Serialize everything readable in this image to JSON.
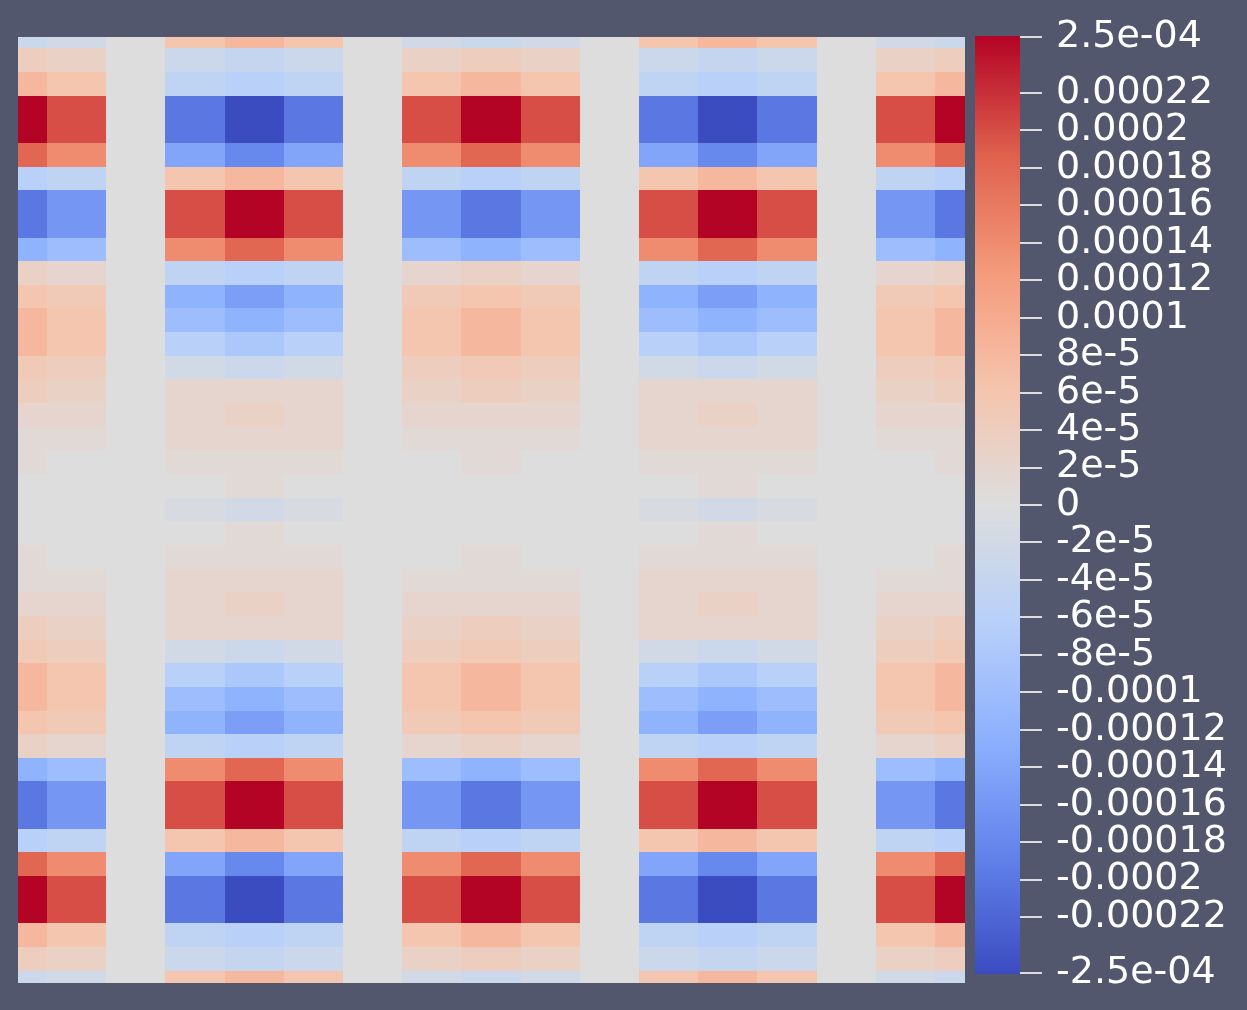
{
  "chart_data": {
    "type": "heatmap",
    "tick_labels": false,
    "x": [
      0,
      1,
      2,
      3,
      4,
      5,
      6,
      7,
      8,
      9,
      10,
      11,
      12,
      13,
      14,
      15,
      16
    ],
    "y": [
      40,
      39,
      38,
      37,
      36,
      35,
      34,
      33,
      32,
      31,
      30,
      29,
      28,
      27,
      26,
      25,
      24,
      23,
      22,
      21,
      20,
      19,
      18,
      17,
      16,
      15,
      14,
      13,
      12,
      11,
      10,
      9,
      8,
      7,
      6,
      5,
      4,
      3,
      2,
      1,
      0
    ],
    "xlim": [
      0,
      16
    ],
    "ylim": [
      0,
      40
    ],
    "cells": [
      [
        -3e-05,
        -2e-05,
        0,
        6e-05,
        8e-05,
        6e-05,
        0,
        -2e-05,
        -3e-05,
        -2e-05,
        0,
        6e-05,
        8e-05,
        6e-05,
        0,
        -2e-05,
        -3e-05
      ],
      [
        4e-05,
        3e-05,
        0,
        -3e-05,
        -4e-05,
        -3e-05,
        0,
        3e-05,
        4e-05,
        3e-05,
        0,
        -3e-05,
        -4e-05,
        -3e-05,
        0,
        3e-05,
        4e-05
      ],
      [
        8e-05,
        6e-05,
        0,
        -5e-05,
        -6e-05,
        -5e-05,
        0,
        6e-05,
        8e-05,
        6e-05,
        0,
        -5e-05,
        -6e-05,
        -5e-05,
        0,
        6e-05,
        8e-05
      ],
      [
        0.00025,
        0.0002,
        0,
        -0.0002,
        -0.00025,
        -0.0002,
        0,
        0.0002,
        0.00025,
        0.0002,
        0,
        -0.0002,
        -0.00025,
        -0.0002,
        0,
        0.0002,
        0.00025
      ],
      [
        0.00025,
        0.0002,
        0,
        -0.0002,
        -0.00025,
        -0.0002,
        0,
        0.0002,
        0.00025,
        0.0002,
        0,
        -0.0002,
        -0.00025,
        -0.0002,
        0,
        0.0002,
        0.00025
      ],
      [
        0.00018,
        0.00014,
        0,
        -0.00014,
        -0.00018,
        -0.00014,
        0,
        0.00014,
        0.00018,
        0.00014,
        0,
        -0.00014,
        -0.00018,
        -0.00014,
        0,
        0.00014,
        0.00018
      ],
      [
        -6e-05,
        -5e-05,
        0,
        6e-05,
        8e-05,
        6e-05,
        0,
        -5e-05,
        -6e-05,
        -5e-05,
        0,
        6e-05,
        8e-05,
        6e-05,
        0,
        -5e-05,
        -6e-05
      ],
      [
        -0.0002,
        -0.00016,
        0,
        0.0002,
        0.00025,
        0.0002,
        0,
        -0.00016,
        -0.0002,
        -0.00016,
        0,
        0.0002,
        0.00025,
        0.0002,
        0,
        -0.00016,
        -0.0002
      ],
      [
        -0.0002,
        -0.00016,
        0,
        0.0002,
        0.00025,
        0.0002,
        0,
        -0.00016,
        -0.0002,
        -0.00016,
        0,
        0.0002,
        0.00025,
        0.0002,
        0,
        -0.00016,
        -0.0002
      ],
      [
        -0.00012,
        -0.0001,
        0,
        0.00014,
        0.00018,
        0.00014,
        0,
        -0.0001,
        -0.00012,
        -0.0001,
        0,
        0.00014,
        0.00018,
        0.00014,
        0,
        -0.0001,
        -0.00012
      ],
      [
        3e-05,
        2e-05,
        0,
        -5e-05,
        -6e-05,
        -5e-05,
        0,
        2e-05,
        3e-05,
        2e-05,
        0,
        -5e-05,
        -6e-05,
        -5e-05,
        0,
        2e-05,
        3e-05
      ],
      [
        6e-05,
        5e-05,
        0,
        -0.00012,
        -0.00015,
        -0.00012,
        0,
        5e-05,
        6e-05,
        5e-05,
        0,
        -0.00012,
        -0.00015,
        -0.00012,
        0,
        5e-05,
        6e-05
      ],
      [
        8e-05,
        6e-05,
        0,
        -0.0001,
        -0.00012,
        -0.0001,
        0,
        6e-05,
        8e-05,
        6e-05,
        0,
        -0.0001,
        -0.00012,
        -0.0001,
        0,
        6e-05,
        8e-05
      ],
      [
        8e-05,
        6e-05,
        0,
        -6e-05,
        -8e-05,
        -6e-05,
        0,
        6e-05,
        8e-05,
        6e-05,
        0,
        -6e-05,
        -8e-05,
        -6e-05,
        0,
        6e-05,
        8e-05
      ],
      [
        5e-05,
        4e-05,
        0,
        -2e-05,
        -3e-05,
        -2e-05,
        0,
        4e-05,
        5e-05,
        4e-05,
        0,
        -2e-05,
        -3e-05,
        -2e-05,
        0,
        4e-05,
        5e-05
      ],
      [
        4e-05,
        3e-05,
        0,
        2e-05,
        2e-05,
        2e-05,
        0,
        3e-05,
        4e-05,
        3e-05,
        0,
        2e-05,
        2e-05,
        2e-05,
        0,
        3e-05,
        4e-05
      ],
      [
        2e-05,
        2e-05,
        0,
        2e-05,
        3e-05,
        2e-05,
        0,
        2e-05,
        2e-05,
        2e-05,
        0,
        2e-05,
        3e-05,
        2e-05,
        0,
        2e-05,
        2e-05
      ],
      [
        1e-05,
        1e-05,
        0,
        2e-05,
        2e-05,
        2e-05,
        0,
        1e-05,
        1e-05,
        1e-05,
        0,
        2e-05,
        2e-05,
        2e-05,
        0,
        1e-05,
        1e-05
      ],
      [
        1e-05,
        0,
        0,
        1e-05,
        1e-05,
        1e-05,
        0,
        0,
        1e-05,
        0,
        0,
        1e-05,
        1e-05,
        1e-05,
        0,
        0,
        1e-05
      ],
      [
        0,
        0,
        0,
        0,
        1e-05,
        0,
        0,
        0,
        0,
        0,
        0,
        0,
        1e-05,
        0,
        0,
        0,
        0
      ],
      [
        0,
        0,
        0,
        -1e-05,
        -2e-05,
        -1e-05,
        0,
        0,
        0,
        0,
        0,
        -1e-05,
        -2e-05,
        -1e-05,
        0,
        0,
        0
      ],
      [
        0,
        0,
        0,
        0,
        1e-05,
        0,
        0,
        0,
        0,
        0,
        0,
        0,
        1e-05,
        0,
        0,
        0,
        0
      ],
      [
        1e-05,
        0,
        0,
        1e-05,
        1e-05,
        1e-05,
        0,
        0,
        1e-05,
        0,
        0,
        1e-05,
        1e-05,
        1e-05,
        0,
        0,
        1e-05
      ],
      [
        1e-05,
        1e-05,
        0,
        2e-05,
        2e-05,
        2e-05,
        0,
        1e-05,
        1e-05,
        1e-05,
        0,
        2e-05,
        2e-05,
        2e-05,
        0,
        1e-05,
        1e-05
      ],
      [
        2e-05,
        2e-05,
        0,
        2e-05,
        3e-05,
        2e-05,
        0,
        2e-05,
        2e-05,
        2e-05,
        0,
        2e-05,
        3e-05,
        2e-05,
        0,
        2e-05,
        2e-05
      ],
      [
        4e-05,
        3e-05,
        0,
        2e-05,
        2e-05,
        2e-05,
        0,
        3e-05,
        4e-05,
        3e-05,
        0,
        2e-05,
        2e-05,
        2e-05,
        0,
        3e-05,
        4e-05
      ],
      [
        5e-05,
        4e-05,
        0,
        -2e-05,
        -3e-05,
        -2e-05,
        0,
        4e-05,
        5e-05,
        4e-05,
        0,
        -2e-05,
        -3e-05,
        -2e-05,
        0,
        4e-05,
        5e-05
      ],
      [
        8e-05,
        6e-05,
        0,
        -6e-05,
        -8e-05,
        -6e-05,
        0,
        6e-05,
        8e-05,
        6e-05,
        0,
        -6e-05,
        -8e-05,
        -6e-05,
        0,
        6e-05,
        8e-05
      ],
      [
        8e-05,
        6e-05,
        0,
        -0.0001,
        -0.00012,
        -0.0001,
        0,
        6e-05,
        8e-05,
        6e-05,
        0,
        -0.0001,
        -0.00012,
        -0.0001,
        0,
        6e-05,
        8e-05
      ],
      [
        6e-05,
        5e-05,
        0,
        -0.00012,
        -0.00015,
        -0.00012,
        0,
        5e-05,
        6e-05,
        5e-05,
        0,
        -0.00012,
        -0.00015,
        -0.00012,
        0,
        5e-05,
        6e-05
      ],
      [
        3e-05,
        2e-05,
        0,
        -5e-05,
        -6e-05,
        -5e-05,
        0,
        2e-05,
        3e-05,
        2e-05,
        0,
        -5e-05,
        -6e-05,
        -5e-05,
        0,
        2e-05,
        3e-05
      ],
      [
        -0.00012,
        -0.0001,
        0,
        0.00014,
        0.00018,
        0.00014,
        0,
        -0.0001,
        -0.00012,
        -0.0001,
        0,
        0.00014,
        0.00018,
        0.00014,
        0,
        -0.0001,
        -0.00012
      ],
      [
        -0.0002,
        -0.00016,
        0,
        0.0002,
        0.00025,
        0.0002,
        0,
        -0.00016,
        -0.0002,
        -0.00016,
        0,
        0.0002,
        0.00025,
        0.0002,
        0,
        -0.00016,
        -0.0002
      ],
      [
        -0.0002,
        -0.00016,
        0,
        0.0002,
        0.00025,
        0.0002,
        0,
        -0.00016,
        -0.0002,
        -0.00016,
        0,
        0.0002,
        0.00025,
        0.0002,
        0,
        -0.00016,
        -0.0002
      ],
      [
        -6e-05,
        -5e-05,
        0,
        6e-05,
        8e-05,
        6e-05,
        0,
        -5e-05,
        -6e-05,
        -5e-05,
        0,
        6e-05,
        8e-05,
        6e-05,
        0,
        -5e-05,
        -6e-05
      ],
      [
        0.00018,
        0.00014,
        0,
        -0.00014,
        -0.00018,
        -0.00014,
        0,
        0.00014,
        0.00018,
        0.00014,
        0,
        -0.00014,
        -0.00018,
        -0.00014,
        0,
        0.00014,
        0.00018
      ],
      [
        0.00025,
        0.0002,
        0,
        -0.0002,
        -0.00025,
        -0.0002,
        0,
        0.0002,
        0.00025,
        0.0002,
        0,
        -0.0002,
        -0.00025,
        -0.0002,
        0,
        0.0002,
        0.00025
      ],
      [
        0.00025,
        0.0002,
        0,
        -0.0002,
        -0.00025,
        -0.0002,
        0,
        0.0002,
        0.00025,
        0.0002,
        0,
        -0.0002,
        -0.00025,
        -0.0002,
        0,
        0.0002,
        0.00025
      ],
      [
        8e-05,
        6e-05,
        0,
        -5e-05,
        -6e-05,
        -5e-05,
        0,
        6e-05,
        8e-05,
        6e-05,
        0,
        -5e-05,
        -6e-05,
        -5e-05,
        0,
        6e-05,
        8e-05
      ],
      [
        4e-05,
        3e-05,
        0,
        -3e-05,
        -4e-05,
        -3e-05,
        0,
        3e-05,
        4e-05,
        3e-05,
        0,
        -3e-05,
        -4e-05,
        -3e-05,
        0,
        3e-05,
        4e-05
      ],
      [
        -3e-05,
        -2e-05,
        0,
        6e-05,
        8e-05,
        6e-05,
        0,
        -2e-05,
        -3e-05,
        -2e-05,
        0,
        6e-05,
        8e-05,
        6e-05,
        0,
        -2e-05,
        -3e-05
      ]
    ],
    "colorbar": {
      "range": [
        -0.00025,
        0.00025
      ],
      "ticks": [
        {
          "value": 0.00025,
          "label": "2.5e-04"
        },
        0.00022,
        0.0002,
        0.00018,
        0.00016,
        0.00014,
        0.00012,
        0.0001,
        {
          "value": 8e-05,
          "label": "8e-5"
        },
        {
          "value": 6e-05,
          "label": "6e-5"
        },
        {
          "value": 4e-05,
          "label": "4e-5"
        },
        {
          "value": 2e-05,
          "label": "2e-5"
        },
        0,
        {
          "value": -2e-05,
          "label": "-2e-5"
        },
        {
          "value": -4e-05,
          "label": "-4e-5"
        },
        {
          "value": -6e-05,
          "label": "-6e-5"
        },
        {
          "value": -8e-05,
          "label": "-8e-5"
        },
        -0.0001,
        -0.00012,
        -0.00014,
        -0.00016,
        -0.00018,
        -0.0002,
        -0.00022,
        {
          "value": -0.00025,
          "label": "-2.5e-04"
        }
      ]
    }
  }
}
